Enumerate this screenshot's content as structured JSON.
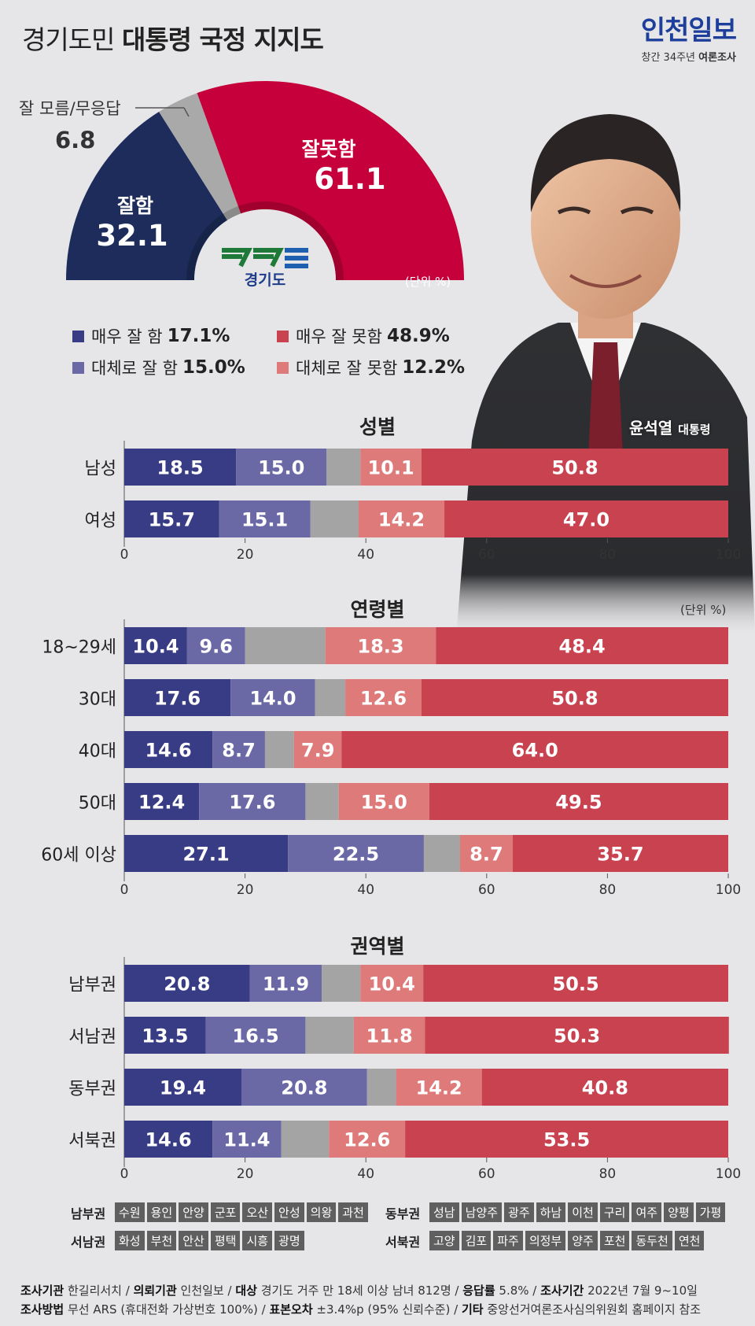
{
  "header": {
    "title_light": "경기도민",
    "title_bold": "대통령 국정 지지도",
    "brand_logo": "인천일보",
    "brand_sub_light": "창간 34주년",
    "brand_sub_bold": "여론조사"
  },
  "portrait": {
    "name": "윤석열",
    "title": "대통령"
  },
  "gauge": {
    "good_label": "잘함",
    "good_value": "32.1",
    "bad_label": "잘못함",
    "bad_value": "61.1",
    "unknown_label": "잘 모름/무응답",
    "unknown_value": "6.8",
    "unit": "(단위 %)",
    "logo_text": "경기도"
  },
  "legend": [
    {
      "label": "매우 잘 함",
      "value": "17.1%",
      "color": "#383c84"
    },
    {
      "label": "매우 잘 못함",
      "value": "48.9%",
      "color": "#c8424f"
    },
    {
      "label": "대체로 잘 함",
      "value": "15.0%",
      "color": "#6a69a6"
    },
    {
      "label": "대체로 잘 못함",
      "value": "12.2%",
      "color": "#de7a79"
    }
  ],
  "colors": {
    "very_good": "#383c84",
    "good": "#6a69a6",
    "unknown": "#a4a4a4",
    "bad": "#de7a79",
    "very_bad": "#c8424f",
    "gauge_good": "#1d2c5b",
    "gauge_bad": "#c5003a",
    "gauge_unknown": "#a9a9a9"
  },
  "sections": {
    "gender": {
      "title": "성별"
    },
    "age": {
      "title": "연령별",
      "unit": "(단위 %)"
    },
    "region": {
      "title": "권역별"
    }
  },
  "chart_data": [
    {
      "type": "bar",
      "title": "대통령 국정 지지도",
      "categories": [
        "잘함",
        "잘못함",
        "잘 모름/무응답"
      ],
      "values": [
        32.1,
        61.1,
        6.8
      ],
      "breakdown": {
        "매우 잘 함": 17.1,
        "대체로 잘 함": 15.0,
        "매우 잘 못함": 48.9,
        "대체로 잘 못함": 12.2
      },
      "unit": "(단위 %)"
    },
    {
      "type": "bar",
      "title": "성별",
      "stacked": true,
      "orientation": "horizontal",
      "categories": [
        "남성",
        "여성"
      ],
      "series": [
        {
          "name": "매우 잘 함",
          "values": [
            18.5,
            15.7
          ]
        },
        {
          "name": "대체로 잘 함",
          "values": [
            15.0,
            15.1
          ]
        },
        {
          "name": "잘 모름/무응답",
          "values": [
            5.6,
            8.0
          ]
        },
        {
          "name": "대체로 잘 못함",
          "values": [
            10.1,
            14.2
          ]
        },
        {
          "name": "매우 잘 못함",
          "values": [
            50.8,
            47.0
          ]
        }
      ],
      "xlim": [
        0,
        100
      ],
      "xticks": [
        "0",
        "20",
        "40",
        "60",
        "80",
        "100"
      ]
    },
    {
      "type": "bar",
      "title": "연령별",
      "stacked": true,
      "orientation": "horizontal",
      "categories": [
        "18~29세",
        "30대",
        "40대",
        "50대",
        "60세 이상"
      ],
      "series": [
        {
          "name": "매우 잘 함",
          "values": [
            10.4,
            17.6,
            14.6,
            12.4,
            27.1
          ]
        },
        {
          "name": "대체로 잘 함",
          "values": [
            9.6,
            14.0,
            8.7,
            17.6,
            22.5
          ]
        },
        {
          "name": "잘 모름/무응답",
          "values": [
            13.3,
            5.0,
            4.8,
            5.5,
            6.0
          ]
        },
        {
          "name": "대체로 잘 못함",
          "values": [
            18.3,
            12.6,
            7.9,
            15.0,
            8.7
          ]
        },
        {
          "name": "매우 잘 못함",
          "values": [
            48.4,
            50.8,
            64.0,
            49.5,
            35.7
          ]
        }
      ],
      "xlim": [
        0,
        100
      ],
      "xticks": [
        "0",
        "20",
        "40",
        "60",
        "80",
        "100"
      ],
      "unit": "(단위 %)"
    },
    {
      "type": "bar",
      "title": "권역별",
      "stacked": true,
      "orientation": "horizontal",
      "categories": [
        "남부권",
        "서남권",
        "동부권",
        "서북권"
      ],
      "series": [
        {
          "name": "매우 잘 함",
          "values": [
            20.8,
            13.5,
            19.4,
            14.6
          ]
        },
        {
          "name": "대체로 잘 함",
          "values": [
            11.9,
            16.5,
            20.8,
            11.4
          ]
        },
        {
          "name": "잘 모름/무응답",
          "values": [
            6.4,
            8.0,
            4.8,
            7.9
          ]
        },
        {
          "name": "대체로 잘 못함",
          "values": [
            10.4,
            11.8,
            14.2,
            12.6
          ]
        },
        {
          "name": "매우 잘 못함",
          "values": [
            50.5,
            50.3,
            40.8,
            53.5
          ]
        }
      ],
      "xlim": [
        0,
        100
      ],
      "xticks": [
        "0",
        "20",
        "40",
        "60",
        "80",
        "100"
      ]
    }
  ],
  "region_key": [
    {
      "name": "남부권",
      "cities": [
        "수원",
        "용인",
        "안양",
        "군포",
        "오산",
        "안성",
        "의왕",
        "과천"
      ]
    },
    {
      "name": "동부권",
      "cities": [
        "성남",
        "남양주",
        "광주",
        "하남",
        "이천",
        "구리",
        "여주",
        "양평",
        "가평"
      ]
    },
    {
      "name": "서남권",
      "cities": [
        "화성",
        "부천",
        "안산",
        "평택",
        "시흥",
        "광명"
      ]
    },
    {
      "name": "서북권",
      "cities": [
        "고양",
        "김포",
        "파주",
        "의정부",
        "양주",
        "포천",
        "동두천",
        "연천"
      ]
    }
  ],
  "footer": {
    "line1": [
      {
        "k": "조사기관",
        "v": " 한길리서치 / "
      },
      {
        "k": "의뢰기관",
        "v": " 인천일보 / "
      },
      {
        "k": "대상",
        "v": " 경기도 거주 만 18세 이상 남녀 812명 / "
      },
      {
        "k": "응답률",
        "v": " 5.8% / "
      },
      {
        "k": "조사기간",
        "v": " 2022년 7월 9~10일"
      }
    ],
    "line2": [
      {
        "k": "조사방법",
        "v": " 무선 ARS (휴대전화 가상번호 100%) / "
      },
      {
        "k": "표본오차",
        "v": " ±3.4%p (95% 신뢰수준) / "
      },
      {
        "k": "기타",
        "v": " 중앙선거여론조사심의위원회 홈페이지 참조"
      }
    ]
  }
}
